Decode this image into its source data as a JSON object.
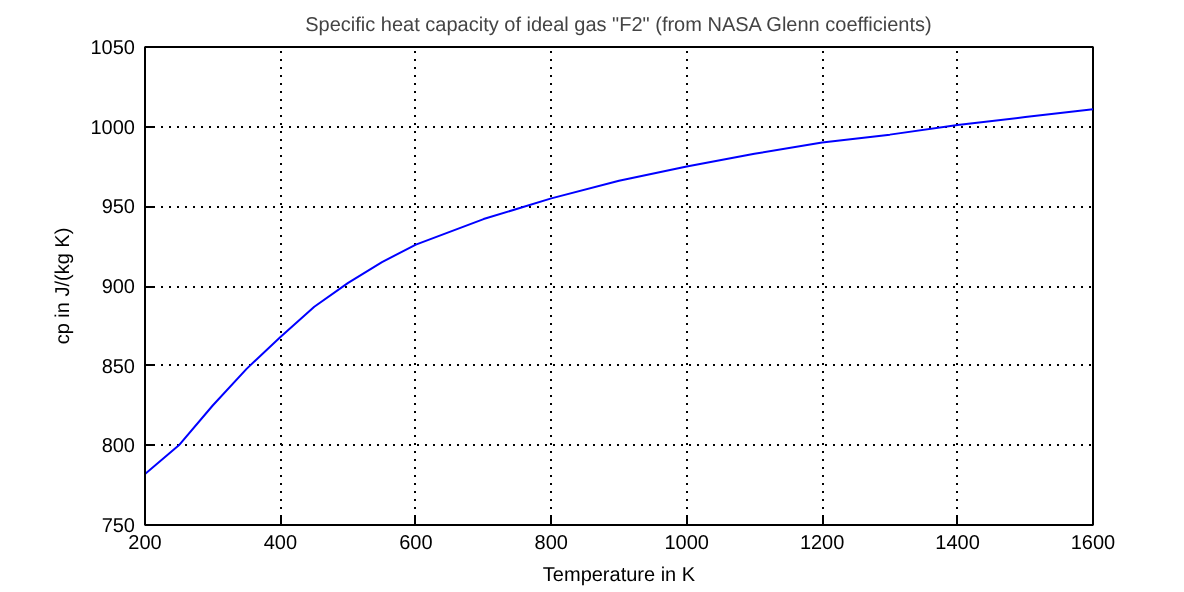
{
  "chart_data": {
    "type": "line",
    "title": "Specific heat capacity of ideal gas \"F2\" (from NASA Glenn coefficients)",
    "xlabel": "Temperature in K",
    "ylabel": "cp in J/(kg K)",
    "x": [
      200,
      250,
      300,
      350,
      400,
      450,
      500,
      550,
      600,
      700,
      800,
      900,
      1000,
      1100,
      1200,
      1300,
      1400,
      1500,
      1600
    ],
    "series": [
      {
        "color": "#0000ff",
        "values": [
          782,
          800,
          825,
          848,
          868,
          887,
          902,
          915,
          926,
          942,
          955,
          966,
          975,
          983,
          990,
          995,
          1001,
          1006,
          1011
        ]
      }
    ],
    "xlim": [
      200,
      1600
    ],
    "ylim": [
      750,
      1050
    ],
    "xticks": [
      200,
      400,
      600,
      800,
      1000,
      1200,
      1400,
      1600
    ],
    "yticks": [
      750,
      800,
      850,
      900,
      950,
      1000,
      1050
    ],
    "grid": true,
    "line_style": "solid",
    "marker": "none"
  }
}
